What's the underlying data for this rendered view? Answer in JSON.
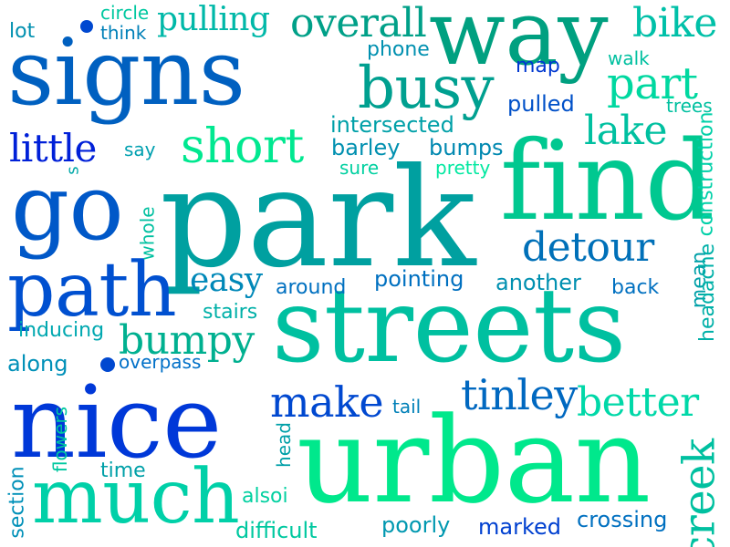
{
  "words": [
    {
      "text": "way",
      "color": "#00a080",
      "vertical": false
    },
    {
      "text": "signs",
      "color": "#0060c0",
      "vertical": false
    },
    {
      "text": "park",
      "color": "#00a0a0",
      "vertical": false
    },
    {
      "text": "find",
      "color": "#00c890",
      "vertical": false
    },
    {
      "text": "streets",
      "color": "#00c0a0",
      "vertical": false
    },
    {
      "text": "nice",
      "color": "#0038d8",
      "vertical": false
    },
    {
      "text": "urban",
      "color": "#00e88c",
      "vertical": false
    },
    {
      "text": "go",
      "color": "#0058c8",
      "vertical": false
    },
    {
      "text": "path",
      "color": "#0050d0",
      "vertical": false
    },
    {
      "text": "much",
      "color": "#00d0a8",
      "vertical": false
    },
    {
      "text": "busy",
      "color": "#00a090",
      "vertical": false
    },
    {
      "text": "short",
      "color": "#00e890",
      "vertical": false
    },
    {
      "text": "bike",
      "color": "#00c0a8",
      "vertical": false
    },
    {
      "text": "overall",
      "color": "#00a088",
      "vertical": false
    },
    {
      "text": "part",
      "color": "#00d8a0",
      "vertical": false
    },
    {
      "text": "lake",
      "color": "#00c0a0",
      "vertical": false
    },
    {
      "text": "detour",
      "color": "#0070b8",
      "vertical": false
    },
    {
      "text": "make",
      "color": "#0048d0",
      "vertical": false
    },
    {
      "text": "tinley",
      "color": "#0068c0",
      "vertical": false
    },
    {
      "text": "better",
      "color": "#00d8a8",
      "vertical": false
    },
    {
      "text": "bumpy",
      "color": "#00b090",
      "vertical": false
    },
    {
      "text": "little",
      "color": "#0020d8",
      "vertical": false
    },
    {
      "text": "pulling",
      "color": "#00b8a8",
      "vertical": false
    },
    {
      "text": "easy",
      "color": "#0088b8",
      "vertical": false
    },
    {
      "text": "creek",
      "color": "#00c0a0",
      "vertical": true
    },
    {
      "text": "pointing",
      "color": "#0070c0",
      "vertical": false
    },
    {
      "text": "another",
      "color": "#0090b0",
      "vertical": false
    },
    {
      "text": "intersected",
      "color": "#00a0a8",
      "vertical": false
    },
    {
      "text": "pulled",
      "color": "#0050c8",
      "vertical": false
    },
    {
      "text": "bumps",
      "color": "#0088b0",
      "vertical": false
    },
    {
      "text": "barley",
      "color": "#0090b0",
      "vertical": false
    },
    {
      "text": "phone",
      "color": "#0090b0",
      "vertical": false
    },
    {
      "text": "marked",
      "color": "#0040d0",
      "vertical": false
    },
    {
      "text": "crossing",
      "color": "#0070c0",
      "vertical": false
    },
    {
      "text": "poorly",
      "color": "#0098b0",
      "vertical": false
    },
    {
      "text": "difficult",
      "color": "#00c8a0",
      "vertical": false
    },
    {
      "text": "overpass",
      "color": "#0070c8",
      "vertical": false
    },
    {
      "text": "along",
      "color": "#0090b8",
      "vertical": false
    },
    {
      "text": "inducing",
      "color": "#00a8b0",
      "vertical": false
    },
    {
      "text": "stairs",
      "color": "#00b0a8",
      "vertical": false
    },
    {
      "text": "around",
      "color": "#0070c0",
      "vertical": false
    },
    {
      "text": "back",
      "color": "#0070c0",
      "vertical": false
    },
    {
      "text": "map",
      "color": "#0038d0",
      "vertical": false
    },
    {
      "text": "walk",
      "color": "#00c0a0",
      "vertical": false
    },
    {
      "text": "trees",
      "color": "#00c0a0",
      "vertical": false
    },
    {
      "text": "lot",
      "color": "#0090b0",
      "vertical": false
    },
    {
      "text": "circle",
      "color": "#00c8a0",
      "vertical": false
    },
    {
      "text": "think",
      "color": "#0080b8",
      "vertical": false
    },
    {
      "text": "say",
      "color": "#00a0b0",
      "vertical": false
    },
    {
      "text": "sure",
      "color": "#00d0a0",
      "vertical": false
    },
    {
      "text": "pretty",
      "color": "#00e8a0",
      "vertical": false
    },
    {
      "text": "tail",
      "color": "#0080b8",
      "vertical": false
    },
    {
      "text": "time",
      "color": "#00a0a8",
      "vertical": false
    },
    {
      "text": "alsoi",
      "color": "#00d0a0",
      "vertical": false
    },
    {
      "text": "s",
      "color": "#00a8a8",
      "vertical": false
    },
    {
      "text": "whole",
      "color": "#00c0a0",
      "vertical": true
    },
    {
      "text": "flowers",
      "color": "#00c8a0",
      "vertical": true
    },
    {
      "text": "section",
      "color": "#0090b8",
      "vertical": true
    },
    {
      "text": "head",
      "color": "#00a0a8",
      "vertical": true
    },
    {
      "text": "mean",
      "color": "#00a0a8",
      "vertical": true
    },
    {
      "text": "headache",
      "color": "#00b0a8",
      "vertical": true
    },
    {
      "text": "construction",
      "color": "#00d0a8",
      "vertical": true
    }
  ],
  "dots": [
    {
      "color": "#0048d0"
    },
    {
      "color": "#0048d0"
    }
  ]
}
